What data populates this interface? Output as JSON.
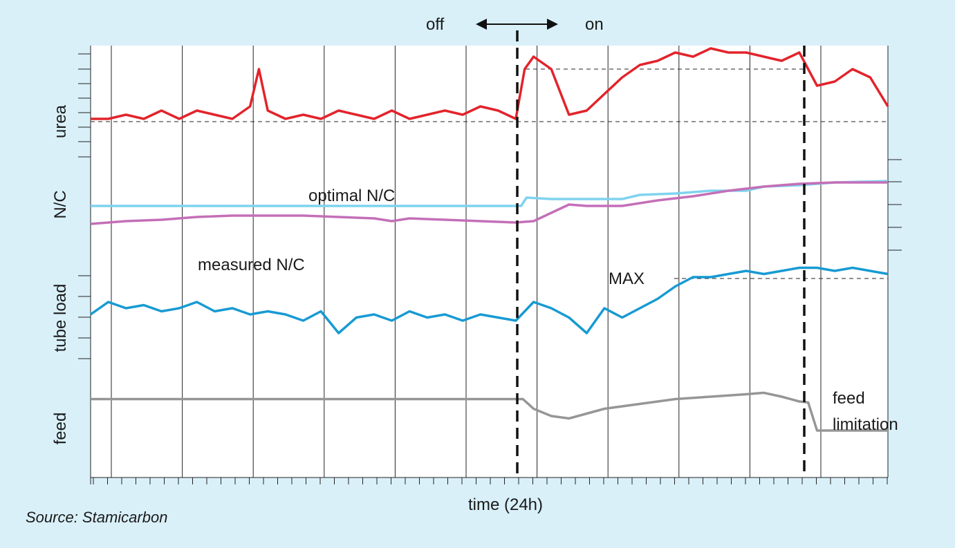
{
  "chart_data": {
    "type": "line",
    "xlabel": "time (24h)",
    "source": "Source: Stamicarbon",
    "x_range": [
      0,
      45
    ],
    "control_marks": {
      "off_label": "off",
      "on_label": "on",
      "switch_on_x": 24,
      "second_switch_x": 40
    },
    "panels": [
      {
        "key": "urea",
        "ylabel": "urea"
      },
      {
        "key": "nc",
        "ylabel": "N/C"
      },
      {
        "key": "tube",
        "ylabel": "tube load"
      },
      {
        "key": "feed",
        "ylabel": "feed"
      }
    ],
    "annotations": {
      "optimal": "optimal N/C",
      "measured": "measured N/C",
      "max": "MAX",
      "feed_limitation_1": "feed",
      "feed_limitation_2": "limitation"
    },
    "series": [
      {
        "name": "urea",
        "panel": "urea",
        "color": "#e3232b",
        "points": [
          [
            0,
            0
          ],
          [
            1,
            0
          ],
          [
            2,
            0.05
          ],
          [
            3,
            0
          ],
          [
            4,
            0.1
          ],
          [
            5,
            0
          ],
          [
            6,
            0.1
          ],
          [
            7,
            0.05
          ],
          [
            8,
            0
          ],
          [
            9,
            0.15
          ],
          [
            9.5,
            0.6
          ],
          [
            10,
            0.1
          ],
          [
            11,
            0
          ],
          [
            12,
            0.05
          ],
          [
            13,
            0
          ],
          [
            14,
            0.1
          ],
          [
            15,
            0.05
          ],
          [
            16,
            0
          ],
          [
            17,
            0.1
          ],
          [
            18,
            0
          ],
          [
            19,
            0.05
          ],
          [
            20,
            0.1
          ],
          [
            21,
            0.05
          ],
          [
            22,
            0.15
          ],
          [
            23,
            0.1
          ],
          [
            24,
            0
          ],
          [
            24.5,
            0.6
          ],
          [
            25,
            0.75
          ],
          [
            26,
            0.6
          ],
          [
            27,
            0.05
          ],
          [
            28,
            0.1
          ],
          [
            29,
            0.3
          ],
          [
            30,
            0.5
          ],
          [
            31,
            0.65
          ],
          [
            32,
            0.7
          ],
          [
            33,
            0.8
          ],
          [
            34,
            0.75
          ],
          [
            35,
            0.85
          ],
          [
            36,
            0.8
          ],
          [
            37,
            0.8
          ],
          [
            38,
            0.75
          ],
          [
            39,
            0.7
          ],
          [
            40,
            0.8
          ],
          [
            41,
            0.4
          ],
          [
            42,
            0.45
          ],
          [
            43,
            0.6
          ],
          [
            44,
            0.5
          ],
          [
            45,
            0.15
          ]
        ]
      },
      {
        "name": "optimal N/C",
        "panel": "nc",
        "color": "#7fd3ee",
        "points": [
          [
            0,
            0.05
          ],
          [
            10,
            0.05
          ],
          [
            20,
            0.05
          ],
          [
            24.3,
            0.05
          ],
          [
            24.6,
            0.35
          ],
          [
            26,
            0.3
          ],
          [
            30,
            0.3
          ],
          [
            31,
            0.45
          ],
          [
            33,
            0.5
          ],
          [
            35,
            0.6
          ],
          [
            37,
            0.6
          ],
          [
            38,
            0.75
          ],
          [
            40,
            0.8
          ],
          [
            42,
            0.9
          ],
          [
            45,
            0.95
          ]
        ]
      },
      {
        "name": "measured N/C",
        "panel": "nc",
        "color": "#c46fb8",
        "points": [
          [
            0,
            -0.6
          ],
          [
            2,
            -0.5
          ],
          [
            4,
            -0.45
          ],
          [
            6,
            -0.35
          ],
          [
            8,
            -0.3
          ],
          [
            10,
            -0.3
          ],
          [
            12,
            -0.3
          ],
          [
            14,
            -0.35
          ],
          [
            16,
            -0.4
          ],
          [
            17,
            -0.5
          ],
          [
            18,
            -0.4
          ],
          [
            20,
            -0.45
          ],
          [
            22,
            -0.5
          ],
          [
            24,
            -0.55
          ],
          [
            25,
            -0.5
          ],
          [
            26,
            -0.2
          ],
          [
            27,
            0.1
          ],
          [
            28,
            0.05
          ],
          [
            30,
            0.05
          ],
          [
            32,
            0.25
          ],
          [
            34,
            0.4
          ],
          [
            36,
            0.6
          ],
          [
            38,
            0.75
          ],
          [
            40,
            0.85
          ],
          [
            42,
            0.9
          ],
          [
            44,
            0.9
          ],
          [
            45,
            0.9
          ]
        ]
      },
      {
        "name": "tube load",
        "panel": "tube",
        "color": "#179ad3",
        "points": [
          [
            0,
            0
          ],
          [
            1,
            0.2
          ],
          [
            2,
            0.1
          ],
          [
            3,
            0.15
          ],
          [
            4,
            0.05
          ],
          [
            5,
            0.1
          ],
          [
            6,
            0.2
          ],
          [
            7,
            0.05
          ],
          [
            8,
            0.1
          ],
          [
            9,
            0.0
          ],
          [
            10,
            0.05
          ],
          [
            11,
            0.0
          ],
          [
            12,
            -0.1
          ],
          [
            13,
            0.05
          ],
          [
            14,
            -0.3
          ],
          [
            15,
            -0.05
          ],
          [
            16,
            0.0
          ],
          [
            17,
            -0.1
          ],
          [
            18,
            0.05
          ],
          [
            19,
            -0.05
          ],
          [
            20,
            0.0
          ],
          [
            21,
            -0.1
          ],
          [
            22,
            0.0
          ],
          [
            23,
            -0.05
          ],
          [
            24,
            -0.1
          ],
          [
            25,
            0.2
          ],
          [
            26,
            0.1
          ],
          [
            27,
            -0.05
          ],
          [
            28,
            -0.3
          ],
          [
            29,
            0.1
          ],
          [
            30,
            -0.05
          ],
          [
            31,
            0.1
          ],
          [
            32,
            0.25
          ],
          [
            33,
            0.45
          ],
          [
            34,
            0.6
          ],
          [
            35,
            0.6
          ],
          [
            36,
            0.65
          ],
          [
            37,
            0.7
          ],
          [
            38,
            0.65
          ],
          [
            39,
            0.7
          ],
          [
            40,
            0.75
          ],
          [
            41,
            0.75
          ],
          [
            42,
            0.7
          ],
          [
            43,
            0.75
          ],
          [
            44,
            0.7
          ],
          [
            45,
            0.65
          ]
        ]
      },
      {
        "name": "feed",
        "panel": "feed",
        "color": "#969696",
        "points": [
          [
            0,
            0.75
          ],
          [
            10,
            0.75
          ],
          [
            20,
            0.75
          ],
          [
            24.4,
            0.75
          ],
          [
            25,
            0.55
          ],
          [
            26,
            0.4
          ],
          [
            27,
            0.35
          ],
          [
            28,
            0.45
          ],
          [
            29,
            0.55
          ],
          [
            31,
            0.65
          ],
          [
            33,
            0.75
          ],
          [
            35,
            0.8
          ],
          [
            37,
            0.85
          ],
          [
            38,
            0.88
          ],
          [
            39,
            0.8
          ],
          [
            40,
            0.7
          ],
          [
            40.5,
            0.68
          ],
          [
            41,
            0.1
          ],
          [
            42,
            0.1
          ],
          [
            45,
            0.1
          ]
        ]
      }
    ]
  }
}
